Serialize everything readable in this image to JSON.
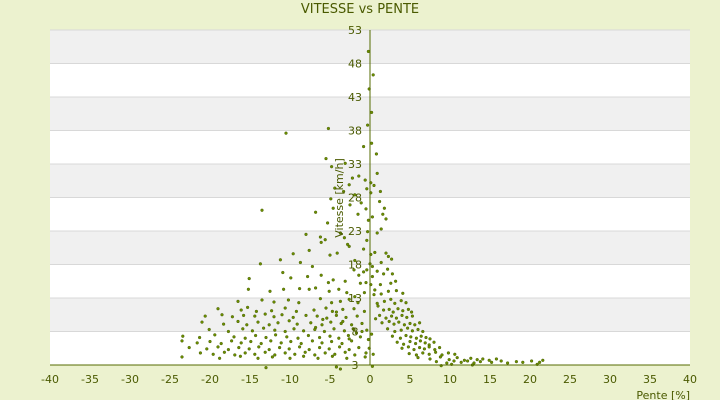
{
  "chart_data": {
    "type": "scatter",
    "title": "VITESSE vs PENTE",
    "xlabel": "Pente [%]",
    "ylabel": "Vitesse [km/h]",
    "xlim": [
      -40,
      40
    ],
    "ylim": [
      3,
      53
    ],
    "xticks": [
      -40,
      -35,
      -30,
      -25,
      -20,
      -15,
      -10,
      -5,
      0,
      5,
      10,
      15,
      20,
      25,
      30,
      35,
      40
    ],
    "yticks": [
      3,
      8,
      13,
      18,
      23,
      28,
      33,
      38,
      43,
      48,
      53
    ],
    "grid": "horizontal bands",
    "colors": {
      "background": "#ecf2cf",
      "band_light": "#ffffff",
      "band_dark": "#f0f0f0",
      "gridline": "#d8d8d8",
      "axis": "#556b00",
      "marker": "#6b8e00",
      "text": "#4a5a00"
    },
    "points": [
      [
        -10.5,
        37.6
      ],
      [
        -5.2,
        38.3
      ],
      [
        -0.2,
        49.8
      ],
      [
        0.4,
        46.3
      ],
      [
        -0.1,
        44.2
      ],
      [
        -0.3,
        38.8
      ],
      [
        0.2,
        36.1
      ],
      [
        0.8,
        34.5
      ],
      [
        -5.5,
        33.8
      ],
      [
        -4.8,
        32.6
      ],
      [
        -3.1,
        33.1
      ],
      [
        -1.4,
        31.2
      ],
      [
        -0.6,
        30.6
      ],
      [
        0.1,
        30.2
      ],
      [
        0.5,
        29.8
      ],
      [
        -2.2,
        30.9
      ],
      [
        -13.5,
        26.1
      ],
      [
        -6.8,
        25.8
      ],
      [
        -4.9,
        27.8
      ],
      [
        -4.6,
        26.4
      ],
      [
        -5.3,
        24.2
      ],
      [
        -6.2,
        22.1
      ],
      [
        -2.5,
        26.9
      ],
      [
        -1.5,
        25.5
      ],
      [
        -1.1,
        27.2
      ],
      [
        -0.5,
        26.3
      ],
      [
        -0.2,
        24.6
      ],
      [
        0.3,
        25.1
      ],
      [
        1.2,
        27.4
      ],
      [
        1.6,
        25.5
      ],
      [
        1.8,
        26.4
      ],
      [
        2.0,
        24.8
      ],
      [
        1.4,
        23.3
      ],
      [
        0.9,
        22.7
      ],
      [
        -8.0,
        22.5
      ],
      [
        -6.1,
        21.3
      ],
      [
        -5.6,
        21.7
      ],
      [
        -3.7,
        22.7
      ],
      [
        -3.2,
        22.0
      ],
      [
        -2.8,
        21.0
      ],
      [
        -2.6,
        20.7
      ],
      [
        -0.8,
        20.3
      ],
      [
        -0.4,
        21.6
      ],
      [
        -9.6,
        19.6
      ],
      [
        -7.6,
        20.1
      ],
      [
        -5.0,
        19.4
      ],
      [
        -4.1,
        19.7
      ],
      [
        -1.9,
        18.6
      ],
      [
        0.1,
        19.5
      ],
      [
        0.6,
        19.8
      ],
      [
        2.0,
        19.7
      ],
      [
        2.3,
        19.2
      ],
      [
        2.7,
        18.8
      ],
      [
        -13.7,
        18.1
      ],
      [
        -11.2,
        18.7
      ],
      [
        -8.7,
        18.3
      ],
      [
        -7.2,
        17.7
      ],
      [
        -2.0,
        17.2
      ],
      [
        -1.4,
        16.4
      ],
      [
        -0.8,
        16.9
      ],
      [
        -0.4,
        17.2
      ],
      [
        0.3,
        17.7
      ],
      [
        0.9,
        17.0
      ],
      [
        1.4,
        18.3
      ],
      [
        1.7,
        16.6
      ],
      [
        2.2,
        17.3
      ],
      [
        2.8,
        16.6
      ],
      [
        -15.1,
        15.9
      ],
      [
        -10.9,
        16.8
      ],
      [
        -9.9,
        16.0
      ],
      [
        -7.8,
        16.2
      ],
      [
        -6.1,
        16.4
      ],
      [
        -5.2,
        15.3
      ],
      [
        -4.6,
        15.7
      ],
      [
        -3.1,
        15.5
      ],
      [
        -1.2,
        15.2
      ],
      [
        -0.5,
        15.3
      ],
      [
        0.1,
        15.0
      ],
      [
        1.3,
        15.0
      ],
      [
        2.6,
        15.2
      ],
      [
        3.2,
        15.5
      ],
      [
        -15.2,
        14.3
      ],
      [
        -12.5,
        14.0
      ],
      [
        -10.8,
        14.3
      ],
      [
        -8.8,
        14.4
      ],
      [
        -7.6,
        14.3
      ],
      [
        -6.8,
        14.5
      ],
      [
        -5.1,
        14.0
      ],
      [
        -3.9,
        14.3
      ],
      [
        -2.9,
        13.8
      ],
      [
        -1.9,
        13.2
      ],
      [
        -0.7,
        13.8
      ],
      [
        0.5,
        13.5
      ],
      [
        1.4,
        13.6
      ],
      [
        2.3,
        14.0
      ],
      [
        3.3,
        14.1
      ],
      [
        4.1,
        13.7
      ],
      [
        -16.5,
        12.5
      ],
      [
        -13.5,
        12.7
      ],
      [
        -12.0,
        12.4
      ],
      [
        -10.2,
        12.7
      ],
      [
        -8.9,
        12.3
      ],
      [
        -6.2,
        12.9
      ],
      [
        -4.8,
        12.3
      ],
      [
        -3.7,
        12.5
      ],
      [
        -2.6,
        12.8
      ],
      [
        -1.5,
        12.3
      ],
      [
        0.9,
        12.2
      ],
      [
        1.8,
        12.5
      ],
      [
        2.6,
        12.8
      ],
      [
        3.1,
        12.2
      ],
      [
        3.9,
        12.6
      ],
      [
        4.5,
        12.3
      ],
      [
        -19.0,
        11.4
      ],
      [
        -16.1,
        11.2
      ],
      [
        -15.3,
        11.6
      ],
      [
        -14.2,
        11.0
      ],
      [
        -12.3,
        11.1
      ],
      [
        -10.6,
        11.5
      ],
      [
        -9.2,
        11.0
      ],
      [
        -7.0,
        11.2
      ],
      [
        -5.5,
        11.5
      ],
      [
        -4.7,
        11.0
      ],
      [
        -3.4,
        11.3
      ],
      [
        -2.0,
        11.4
      ],
      [
        -0.7,
        11.0
      ],
      [
        1.7,
        11.2
      ],
      [
        2.4,
        11.3
      ],
      [
        2.9,
        10.9
      ],
      [
        3.5,
        11.4
      ],
      [
        4.1,
        11.1
      ],
      [
        4.8,
        11.3
      ],
      [
        5.2,
        10.9
      ],
      [
        -20.6,
        10.3
      ],
      [
        -18.5,
        10.5
      ],
      [
        -17.2,
        10.2
      ],
      [
        -15.8,
        10.4
      ],
      [
        -14.4,
        10.3
      ],
      [
        -13.1,
        10.6
      ],
      [
        -12.0,
        10.2
      ],
      [
        -11.0,
        10.5
      ],
      [
        -9.6,
        10.1
      ],
      [
        -8.0,
        10.4
      ],
      [
        -6.6,
        10.3
      ],
      [
        -5.4,
        10.0
      ],
      [
        -4.2,
        10.4
      ],
      [
        -3.0,
        10.1
      ],
      [
        -1.6,
        10.3
      ],
      [
        1.2,
        10.4
      ],
      [
        2.0,
        10.0
      ],
      [
        2.7,
        10.3
      ],
      [
        3.3,
        10.0
      ],
      [
        4.0,
        10.4
      ],
      [
        4.6,
        10.1
      ],
      [
        5.3,
        10.3
      ],
      [
        -21.0,
        9.4
      ],
      [
        -18.3,
        9.1
      ],
      [
        -16.5,
        9.5
      ],
      [
        -15.4,
        9.0
      ],
      [
        -14.0,
        9.4
      ],
      [
        -12.6,
        9.0
      ],
      [
        -11.5,
        9.3
      ],
      [
        -10.1,
        9.6
      ],
      [
        -9.1,
        9.1
      ],
      [
        -7.4,
        9.3
      ],
      [
        -6.0,
        9.0
      ],
      [
        -4.9,
        9.4
      ],
      [
        -3.6,
        9.2
      ],
      [
        -2.3,
        9.0
      ],
      [
        1.5,
        9.3
      ],
      [
        2.4,
        9.5
      ],
      [
        3.0,
        9.1
      ],
      [
        3.6,
        9.4
      ],
      [
        4.3,
        9.0
      ],
      [
        5.0,
        9.2
      ],
      [
        5.6,
        9.0
      ],
      [
        6.2,
        9.3
      ],
      [
        -20.1,
        8.3
      ],
      [
        -17.7,
        8.0
      ],
      [
        -15.9,
        8.4
      ],
      [
        -14.7,
        8.1
      ],
      [
        -13.3,
        8.5
      ],
      [
        -11.9,
        8.2
      ],
      [
        -10.6,
        8.0
      ],
      [
        -9.5,
        8.4
      ],
      [
        -8.3,
        8.1
      ],
      [
        -6.9,
        8.3
      ],
      [
        -5.7,
        8.0
      ],
      [
        -4.5,
        8.4
      ],
      [
        -3.2,
        8.1
      ],
      [
        -2.0,
        8.3
      ],
      [
        -1.0,
        8.0
      ],
      [
        2.2,
        8.4
      ],
      [
        3.1,
        8.0
      ],
      [
        3.9,
        8.2
      ],
      [
        4.7,
        8.5
      ],
      [
        5.3,
        8.1
      ],
      [
        6.0,
        8.3
      ],
      [
        6.6,
        8.0
      ],
      [
        -23.4,
        7.3
      ],
      [
        -21.3,
        7.1
      ],
      [
        -19.4,
        7.5
      ],
      [
        -17.0,
        7.2
      ],
      [
        -15.6,
        7.0
      ],
      [
        -14.3,
        7.4
      ],
      [
        -13.0,
        7.1
      ],
      [
        -11.8,
        7.5
      ],
      [
        -10.4,
        7.2
      ],
      [
        -9.0,
        7.0
      ],
      [
        -7.7,
        7.4
      ],
      [
        -6.3,
        7.1
      ],
      [
        -5.0,
        7.3
      ],
      [
        -3.9,
        7.0
      ],
      [
        -2.7,
        7.4
      ],
      [
        -1.2,
        7.2
      ],
      [
        2.8,
        7.3
      ],
      [
        3.8,
        7.0
      ],
      [
        4.5,
        7.4
      ],
      [
        5.1,
        7.2
      ],
      [
        5.8,
        7.0
      ],
      [
        6.4,
        7.3
      ],
      [
        7.0,
        7.1
      ],
      [
        7.5,
        6.9
      ],
      [
        -23.5,
        6.6
      ],
      [
        -21.6,
        6.3
      ],
      [
        -20.0,
        6.5
      ],
      [
        -18.6,
        6.2
      ],
      [
        -17.3,
        6.6
      ],
      [
        -16.1,
        6.3
      ],
      [
        -14.9,
        6.5
      ],
      [
        -13.6,
        6.2
      ],
      [
        -12.4,
        6.6
      ],
      [
        -11.1,
        6.3
      ],
      [
        -9.9,
        6.5
      ],
      [
        -8.6,
        6.2
      ],
      [
        -7.2,
        6.6
      ],
      [
        -6.0,
        6.3
      ],
      [
        -4.8,
        6.5
      ],
      [
        -3.5,
        6.2
      ],
      [
        -2.3,
        6.6
      ],
      [
        3.4,
        6.4
      ],
      [
        4.2,
        6.1
      ],
      [
        5.0,
        6.5
      ],
      [
        5.7,
        6.2
      ],
      [
        6.3,
        6.6
      ],
      [
        6.9,
        6.3
      ],
      [
        7.4,
        6.0
      ],
      [
        8.0,
        6.4
      ],
      [
        -22.6,
        5.6
      ],
      [
        -20.4,
        5.4
      ],
      [
        -19.0,
        5.7
      ],
      [
        -17.7,
        5.3
      ],
      [
        -16.4,
        5.6
      ],
      [
        -15.1,
        5.4
      ],
      [
        -13.9,
        5.7
      ],
      [
        -12.6,
        5.3
      ],
      [
        -11.3,
        5.6
      ],
      [
        -10.1,
        5.4
      ],
      [
        -8.8,
        5.7
      ],
      [
        -7.6,
        5.3
      ],
      [
        -6.3,
        5.6
      ],
      [
        -5.1,
        5.4
      ],
      [
        -3.8,
        5.7
      ],
      [
        -2.6,
        5.3
      ],
      [
        -1.4,
        5.6
      ],
      [
        4.0,
        5.5
      ],
      [
        4.8,
        5.7
      ],
      [
        5.5,
        5.3
      ],
      [
        6.2,
        5.6
      ],
      [
        6.8,
        5.4
      ],
      [
        7.4,
        5.7
      ],
      [
        8.1,
        5.3
      ],
      [
        8.7,
        5.6
      ],
      [
        -21.2,
        4.8
      ],
      [
        -19.6,
        4.6
      ],
      [
        -18.2,
        4.9
      ],
      [
        -16.9,
        4.5
      ],
      [
        -15.6,
        4.8
      ],
      [
        -14.4,
        4.6
      ],
      [
        -13.1,
        4.9
      ],
      [
        -11.9,
        4.5
      ],
      [
        -10.6,
        4.8
      ],
      [
        -9.4,
        4.6
      ],
      [
        -8.1,
        4.9
      ],
      [
        -6.9,
        4.5
      ],
      [
        -5.6,
        4.8
      ],
      [
        -4.4,
        4.6
      ],
      [
        -3.1,
        4.9
      ],
      [
        -1.9,
        4.5
      ],
      [
        -0.5,
        4.8
      ],
      [
        4.9,
        4.7
      ],
      [
        5.8,
        4.5
      ],
      [
        6.6,
        4.8
      ],
      [
        7.4,
        4.6
      ],
      [
        8.2,
        4.9
      ],
      [
        9.0,
        4.5
      ],
      [
        9.8,
        4.8
      ],
      [
        10.6,
        4.6
      ],
      [
        -23.5,
        4.2
      ],
      [
        -18.8,
        4.0
      ],
      [
        -16.2,
        4.3
      ],
      [
        -14.0,
        4.0
      ],
      [
        -12.2,
        4.2
      ],
      [
        -10.0,
        4.0
      ],
      [
        -8.3,
        4.3
      ],
      [
        -6.5,
        4.0
      ],
      [
        -4.7,
        4.3
      ],
      [
        -2.9,
        4.0
      ],
      [
        -0.6,
        4.2
      ],
      [
        6.0,
        4.1
      ],
      [
        7.5,
        3.9
      ],
      [
        8.8,
        4.2
      ],
      [
        9.9,
        3.8
      ],
      [
        10.9,
        4.1
      ],
      [
        11.8,
        3.7
      ],
      [
        12.6,
        4.0
      ],
      [
        13.4,
        3.8
      ],
      [
        14.1,
        3.9
      ],
      [
        14.9,
        3.7
      ],
      [
        15.8,
        3.9
      ],
      [
        8.3,
        3.5
      ],
      [
        9.6,
        3.3
      ],
      [
        10.5,
        3.6
      ],
      [
        11.4,
        3.4
      ],
      [
        12.2,
        3.6
      ],
      [
        13.0,
        3.3
      ],
      [
        13.8,
        3.5
      ],
      [
        15.2,
        3.4
      ],
      [
        16.4,
        3.6
      ],
      [
        17.2,
        3.3
      ],
      [
        18.3,
        3.5
      ],
      [
        19.1,
        3.4
      ],
      [
        20.2,
        3.6
      ],
      [
        21.2,
        3.4
      ],
      [
        21.6,
        3.7
      ],
      [
        20.9,
        3.1
      ],
      [
        12.8,
        3.0
      ],
      [
        10.2,
        3.1
      ],
      [
        8.9,
        2.9
      ],
      [
        -13.0,
        2.6
      ],
      [
        -4.2,
        2.7
      ],
      [
        -3.7,
        2.4
      ],
      [
        0.3,
        2.8
      ],
      [
        -6.8,
        8.6
      ],
      [
        -5.9,
        9.8
      ],
      [
        -4.2,
        10.9
      ],
      [
        -3.4,
        9.5
      ],
      [
        -2.6,
        6.9
      ],
      [
        -2.1,
        8.4
      ],
      [
        -1.7,
        7.8
      ],
      [
        -1.0,
        9.2
      ],
      [
        -0.4,
        8.2
      ],
      [
        -0.2,
        6.8
      ],
      [
        -0.1,
        5.5
      ],
      [
        0.4,
        4.6
      ],
      [
        0.2,
        7.6
      ],
      [
        0.7,
        9.9
      ],
      [
        1.0,
        11.8
      ],
      [
        0.6,
        14.2
      ],
      [
        0.3,
        16.2
      ],
      [
        0.0,
        18.1
      ],
      [
        -0.3,
        22.9
      ],
      [
        0.1,
        28.7
      ],
      [
        -0.4,
        29.3
      ],
      [
        -1.9,
        28.4
      ],
      [
        -2.6,
        29.9
      ],
      [
        -3.3,
        28.9
      ],
      [
        -4.4,
        29.4
      ],
      [
        1.3,
        28.9
      ],
      [
        0.9,
        31.6
      ],
      [
        -0.8,
        35.6
      ],
      [
        0.2,
        40.7
      ]
    ]
  }
}
